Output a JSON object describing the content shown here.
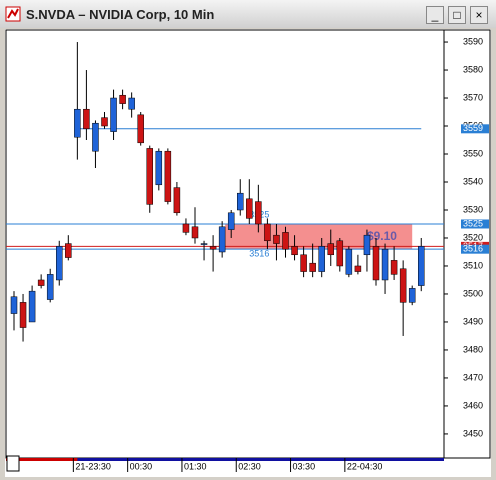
{
  "window_title": "S.NVDA – NVIDIA Corp, 10 Min",
  "chart_data": {
    "type": "candlestick",
    "categories": [
      null,
      null,
      null,
      null,
      null,
      null,
      null,
      "21-23:30",
      null,
      null,
      null,
      null,
      null,
      "00:30",
      null,
      null,
      null,
      null,
      null,
      "01:30",
      null,
      null,
      null,
      null,
      null,
      "02:30",
      null,
      null,
      null,
      null,
      null,
      "03:30",
      null,
      null,
      null,
      null,
      null,
      "22-04:30",
      null,
      null,
      null,
      null,
      null,
      null,
      null,
      null
    ],
    "open": [
      3493,
      3497,
      3490,
      3505,
      3498,
      3505,
      3518,
      3556,
      3566,
      3551,
      3563,
      3558,
      3571,
      3566,
      3564,
      3552,
      3539,
      3551,
      3538,
      3525,
      3524,
      3518,
      3517,
      3515,
      3523,
      3530,
      3534,
      3533,
      3525,
      3521,
      3522,
      3517,
      3514,
      3511,
      3508,
      3518,
      3519,
      3507,
      3510,
      3514,
      3517,
      3505,
      3512,
      3509,
      3497,
      3503
    ],
    "high": [
      3501,
      3500,
      3503,
      3507,
      3509,
      3519,
      3521,
      3590,
      3580,
      3562,
      3565,
      3573,
      3573,
      3572,
      3565,
      3553,
      3552,
      3552,
      3540,
      3527,
      3531,
      3519,
      3521,
      3526,
      3530,
      3541,
      3541,
      3539,
      3527,
      3525,
      3524,
      3521,
      3517,
      3518,
      3520,
      3523,
      3520,
      3517,
      3514,
      3523,
      3520,
      3518,
      3517,
      3512,
      3503,
      3520
    ],
    "low": [
      3487,
      3483,
      3490,
      3502,
      3497,
      3503,
      3512,
      3548,
      3555,
      3545,
      3559,
      3555,
      3566,
      3563,
      3553,
      3529,
      3537,
      3532,
      3528,
      3521,
      3518,
      3512,
      3508,
      3513,
      3520,
      3528,
      3525,
      3522,
      3516,
      3512,
      3513,
      3512,
      3506,
      3506,
      3506,
      3510,
      3508,
      3506,
      3507,
      3508,
      3503,
      3500,
      3505,
      3485,
      3496,
      3501
    ],
    "close": [
      3499,
      3488,
      3501,
      3503,
      3507,
      3517,
      3513,
      3566,
      3559,
      3561,
      3560,
      3570,
      3568,
      3570,
      3554,
      3532,
      3551,
      3533,
      3529,
      3522,
      3520,
      3518,
      3516,
      3524,
      3529,
      3536,
      3527,
      3525,
      3519,
      3518,
      3516,
      3514,
      3508,
      3508,
      3517,
      3514,
      3510,
      3516,
      3508,
      3521,
      3505,
      3516,
      3507,
      3497,
      3502,
      3517
    ],
    "up_color": "#1f63d8",
    "down_color": "#cc1414",
    "ylim": [
      3441.4,
      3594.3
    ],
    "yticks": [
      3450,
      3460,
      3470,
      3480,
      3490,
      3500,
      3510,
      3520,
      3530,
      3540,
      3550,
      3560,
      3570,
      3580,
      3590
    ],
    "levels": [
      {
        "value": 3559,
        "color": "#2a7fd4"
      },
      {
        "value": 3525,
        "color": "#2a7fd4"
      },
      {
        "value": 3517,
        "color": "#d01c1c"
      },
      {
        "value": 3516,
        "color": "#2a7fd4"
      }
    ],
    "zone": {
      "low": 3516,
      "high": 3525,
      "label": "$9.10",
      "color": "#f06a6a"
    }
  }
}
